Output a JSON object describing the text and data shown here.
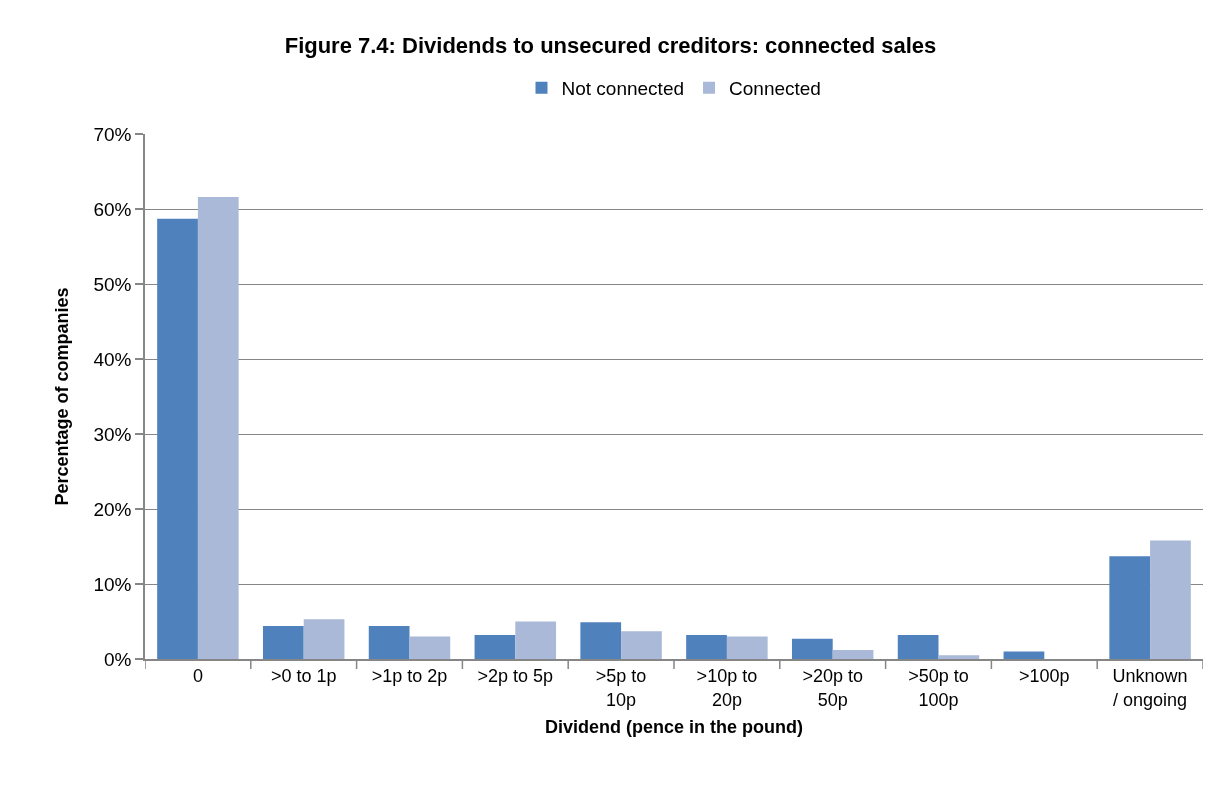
{
  "chart_data": {
    "type": "bar",
    "title": "Figure 7.4: Dividends to unsecured creditors: connected sales",
    "xlabel": "Dividend (pence in the pound)",
    "ylabel": "Percentage of companies",
    "categories": [
      "0",
      ">0 to 1p",
      ">1p to 2p",
      ">2p to 5p",
      ">5p to 10p",
      ">10p to 20p",
      ">20p to 50p",
      ">50p to 100p",
      ">100p",
      "Unknown / ongoing"
    ],
    "series": [
      {
        "name": "Not connected",
        "color": "#4f81bd",
        "values": [
          58.7,
          4.4,
          4.4,
          3.2,
          4.9,
          3.2,
          2.7,
          3.2,
          1.0,
          13.7
        ]
      },
      {
        "name": "Connected",
        "color": "#aab9d7",
        "values": [
          61.6,
          5.3,
          3.0,
          5.0,
          3.7,
          3.0,
          1.2,
          0.5,
          0,
          15.8
        ]
      }
    ],
    "ylim": [
      0,
      70
    ],
    "yticks": [
      {
        "value": 0,
        "label": "0%"
      },
      {
        "value": 10,
        "label": "10%"
      },
      {
        "value": 20,
        "label": "20%"
      },
      {
        "value": 30,
        "label": "30%"
      },
      {
        "value": 40,
        "label": "40%"
      },
      {
        "value": 50,
        "label": "50%"
      },
      {
        "value": 60,
        "label": "60%"
      },
      {
        "value": 70,
        "label": "70%"
      }
    ],
    "grid": "y",
    "legend": "top"
  }
}
